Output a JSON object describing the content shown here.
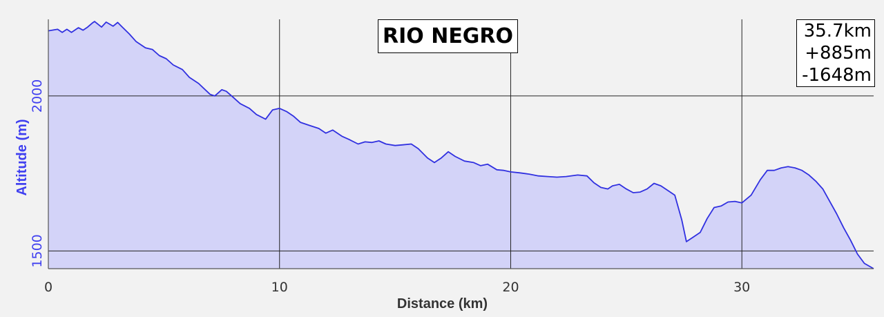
{
  "chart_data": {
    "type": "area",
    "title": "RIO NEGRO",
    "xlabel": "Distance (km)",
    "ylabel": "Altitude (m)",
    "xlim": [
      0,
      35.7
    ],
    "ylim": [
      1443,
      2247
    ],
    "x_ticks": [
      0,
      10,
      20,
      30
    ],
    "y_ticks": [
      1500,
      2000
    ],
    "grid": true,
    "summary": {
      "distance": "35.7km",
      "ascent": "+885m",
      "descent": "-1648m"
    },
    "series": [
      {
        "x": [
          0,
          0.4,
          0.6,
          0.8,
          1.0,
          1.3,
          1.5,
          1.7,
          1.9,
          2.0,
          2.3,
          2.5,
          2.8,
          3.0,
          3.2,
          3.5,
          3.8,
          4.2,
          4.5,
          4.8,
          5.1,
          5.4,
          5.8,
          6.1,
          6.5,
          7.0,
          7.2,
          7.5,
          7.7,
          8.0,
          8.3,
          8.7,
          9.0,
          9.4,
          9.7,
          10.0,
          10.3,
          10.6,
          10.9,
          11.3,
          11.7,
          12.0,
          12.3,
          12.7,
          13.0,
          13.4,
          13.7,
          14.0,
          14.3,
          14.6,
          15.0,
          15.3,
          15.7,
          16.0,
          16.4,
          16.7,
          17.0,
          17.3,
          17.6,
          18.0,
          18.4,
          18.7,
          19.0,
          19.4,
          19.7,
          20.0,
          20.4,
          20.8,
          21.2,
          21.6,
          22.0,
          22.4,
          22.9,
          23.3,
          23.6,
          23.9,
          24.2,
          24.4,
          24.7,
          25.0,
          25.3,
          25.6,
          25.9,
          26.2,
          26.5,
          26.8,
          27.1,
          27.4,
          27.6,
          27.9,
          28.2,
          28.5,
          28.8,
          29.1,
          29.4,
          29.7,
          30.0,
          30.4,
          30.8,
          31.1,
          31.4,
          31.7,
          32.0,
          32.3,
          32.6,
          32.9,
          33.2,
          33.5,
          33.8,
          34.1,
          34.4,
          34.7,
          35.0,
          35.3,
          35.7
        ],
        "y": [
          2210,
          2215,
          2205,
          2215,
          2205,
          2220,
          2212,
          2222,
          2235,
          2240,
          2222,
          2238,
          2225,
          2237,
          2222,
          2200,
          2175,
          2155,
          2150,
          2130,
          2120,
          2100,
          2085,
          2060,
          2040,
          2005,
          2000,
          2020,
          2015,
          1995,
          1975,
          1960,
          1940,
          1925,
          1955,
          1960,
          1950,
          1935,
          1915,
          1905,
          1895,
          1880,
          1890,
          1870,
          1860,
          1845,
          1852,
          1850,
          1855,
          1845,
          1840,
          1842,
          1845,
          1830,
          1800,
          1785,
          1800,
          1820,
          1805,
          1790,
          1785,
          1775,
          1780,
          1762,
          1760,
          1755,
          1752,
          1748,
          1742,
          1740,
          1738,
          1740,
          1745,
          1742,
          1720,
          1705,
          1700,
          1710,
          1715,
          1700,
          1688,
          1690,
          1700,
          1718,
          1710,
          1695,
          1680,
          1600,
          1530,
          1545,
          1560,
          1605,
          1640,
          1645,
          1658,
          1660,
          1655,
          1680,
          1730,
          1760,
          1760,
          1768,
          1772,
          1768,
          1760,
          1745,
          1725,
          1700,
          1660,
          1620,
          1575,
          1535,
          1490,
          1460,
          1443
        ]
      }
    ]
  }
}
